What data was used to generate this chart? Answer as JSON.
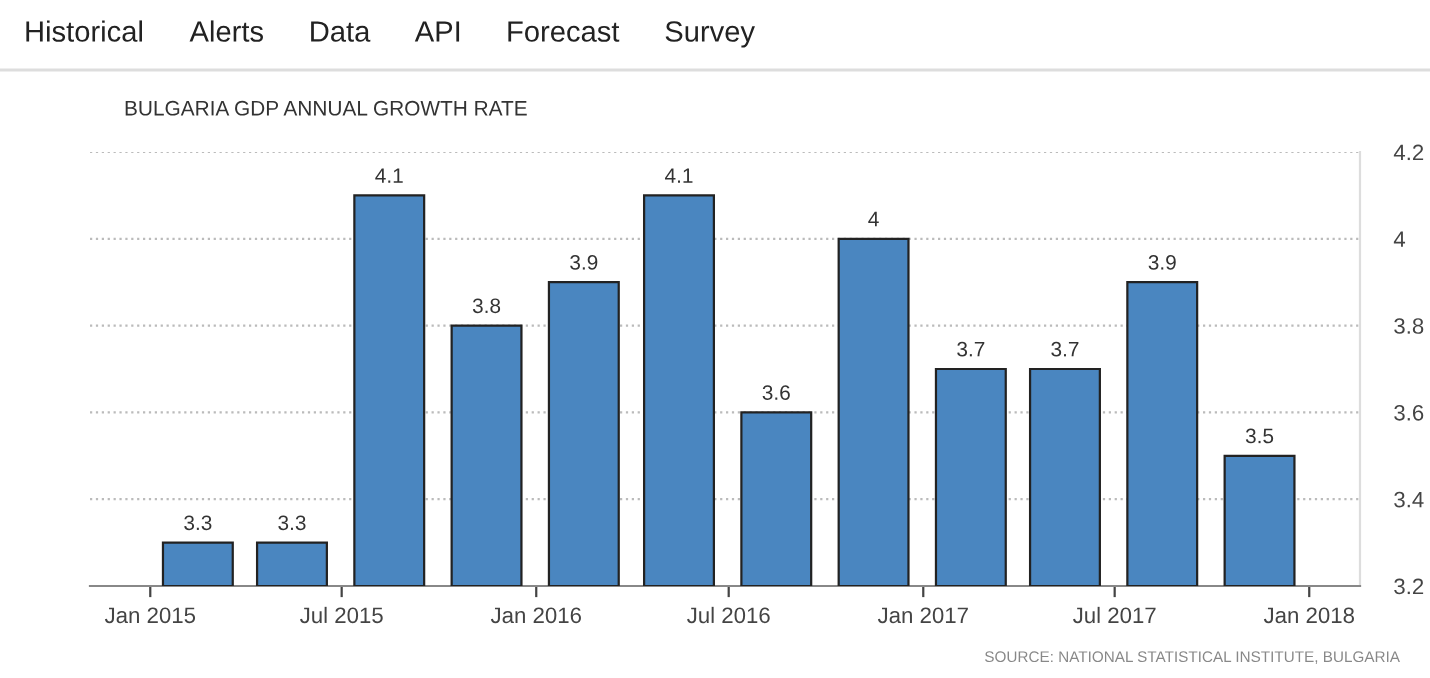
{
  "chart_data": {
    "type": "bar",
    "title": "BULGARIA GDP ANNUAL GROWTH RATE",
    "x": [
      "2015-02-15",
      "2015-05-15",
      "2015-08-15",
      "2015-11-15",
      "2016-02-15",
      "2016-05-15",
      "2016-08-15",
      "2016-11-15",
      "2017-02-15",
      "2017-05-15",
      "2017-08-15",
      "2017-11-15"
    ],
    "values": [
      3.3,
      3.3,
      4.1,
      3.8,
      3.9,
      4.1,
      3.6,
      4,
      3.7,
      3.7,
      3.9,
      3.5
    ],
    "color": "#4a86c0",
    "data_labels": true,
    "xlim": [
      "2014-11-05",
      "2018-02-18"
    ],
    "xticks": [
      {
        "value": "2015-01-01",
        "label": "Jan 2015"
      },
      {
        "value": "2015-07-01",
        "label": "Jul 2015"
      },
      {
        "value": "2016-01-01",
        "label": "Jan 2016"
      },
      {
        "value": "2016-07-01",
        "label": "Jul 2016"
      },
      {
        "value": "2017-01-01",
        "label": "Jan 2017"
      },
      {
        "value": "2017-07-01",
        "label": "Jul 2017"
      },
      {
        "value": "2018-01-01",
        "label": "Jan 2018"
      }
    ],
    "ylim": [
      3.2,
      4.2
    ],
    "yticks": [
      3.2,
      3.4,
      3.6,
      3.8,
      4,
      4.2
    ],
    "grid": "y",
    "annotations": [
      "Historical",
      "Alerts",
      "Data",
      "API",
      "Forecast",
      "Survey",
      "SOURCE: NATIONAL STATISTICAL INSTITUTE, BULGARIA"
    ]
  }
}
